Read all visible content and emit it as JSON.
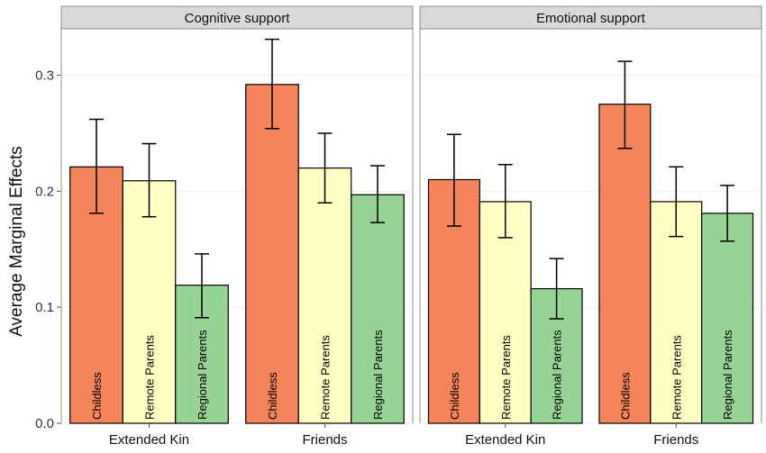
{
  "chart_data": {
    "type": "bar",
    "ylabel": "Average Marginal Effects",
    "xlabel": "",
    "ylim": [
      0,
      0.34
    ],
    "yticks": [
      0.0,
      0.1,
      0.2,
      0.3
    ],
    "ytick_labels": [
      "0.0",
      "0.1",
      "0.2",
      "0.3"
    ],
    "grid": true,
    "legend": "none (series labels printed vertically inside bars)",
    "categories": [
      "Extended Kin",
      "Friends"
    ],
    "series_colors": {
      "Childless": "#f4845c",
      "Remote Parents": "#ffffc4",
      "Regional Parents": "#97d394"
    },
    "panels": [
      {
        "title": "Cognitive support",
        "groups": [
          {
            "category": "Extended Kin",
            "bars": [
              {
                "label": "Childless",
                "value": 0.221,
                "lo": 0.181,
                "hi": 0.262
              },
              {
                "label": "Remote Parents",
                "value": 0.209,
                "lo": 0.178,
                "hi": 0.241
              },
              {
                "label": "Regional Parents",
                "value": 0.119,
                "lo": 0.091,
                "hi": 0.146
              }
            ]
          },
          {
            "category": "Friends",
            "bars": [
              {
                "label": "Childless",
                "value": 0.292,
                "lo": 0.254,
                "hi": 0.331
              },
              {
                "label": "Remote Parents",
                "value": 0.22,
                "lo": 0.19,
                "hi": 0.25
              },
              {
                "label": "Regional Parents",
                "value": 0.197,
                "lo": 0.173,
                "hi": 0.222
              }
            ]
          }
        ]
      },
      {
        "title": "Emotional support",
        "groups": [
          {
            "category": "Extended Kin",
            "bars": [
              {
                "label": "Childless",
                "value": 0.21,
                "lo": 0.17,
                "hi": 0.249
              },
              {
                "label": "Remote Parents",
                "value": 0.191,
                "lo": 0.16,
                "hi": 0.223
              },
              {
                "label": "Regional Parents",
                "value": 0.116,
                "lo": 0.09,
                "hi": 0.142
              }
            ]
          },
          {
            "category": "Friends",
            "bars": [
              {
                "label": "Childless",
                "value": 0.275,
                "lo": 0.237,
                "hi": 0.312
              },
              {
                "label": "Remote Parents",
                "value": 0.191,
                "lo": 0.161,
                "hi": 0.221
              },
              {
                "label": "Regional Parents",
                "value": 0.181,
                "lo": 0.157,
                "hi": 0.205
              }
            ]
          }
        ]
      }
    ]
  }
}
